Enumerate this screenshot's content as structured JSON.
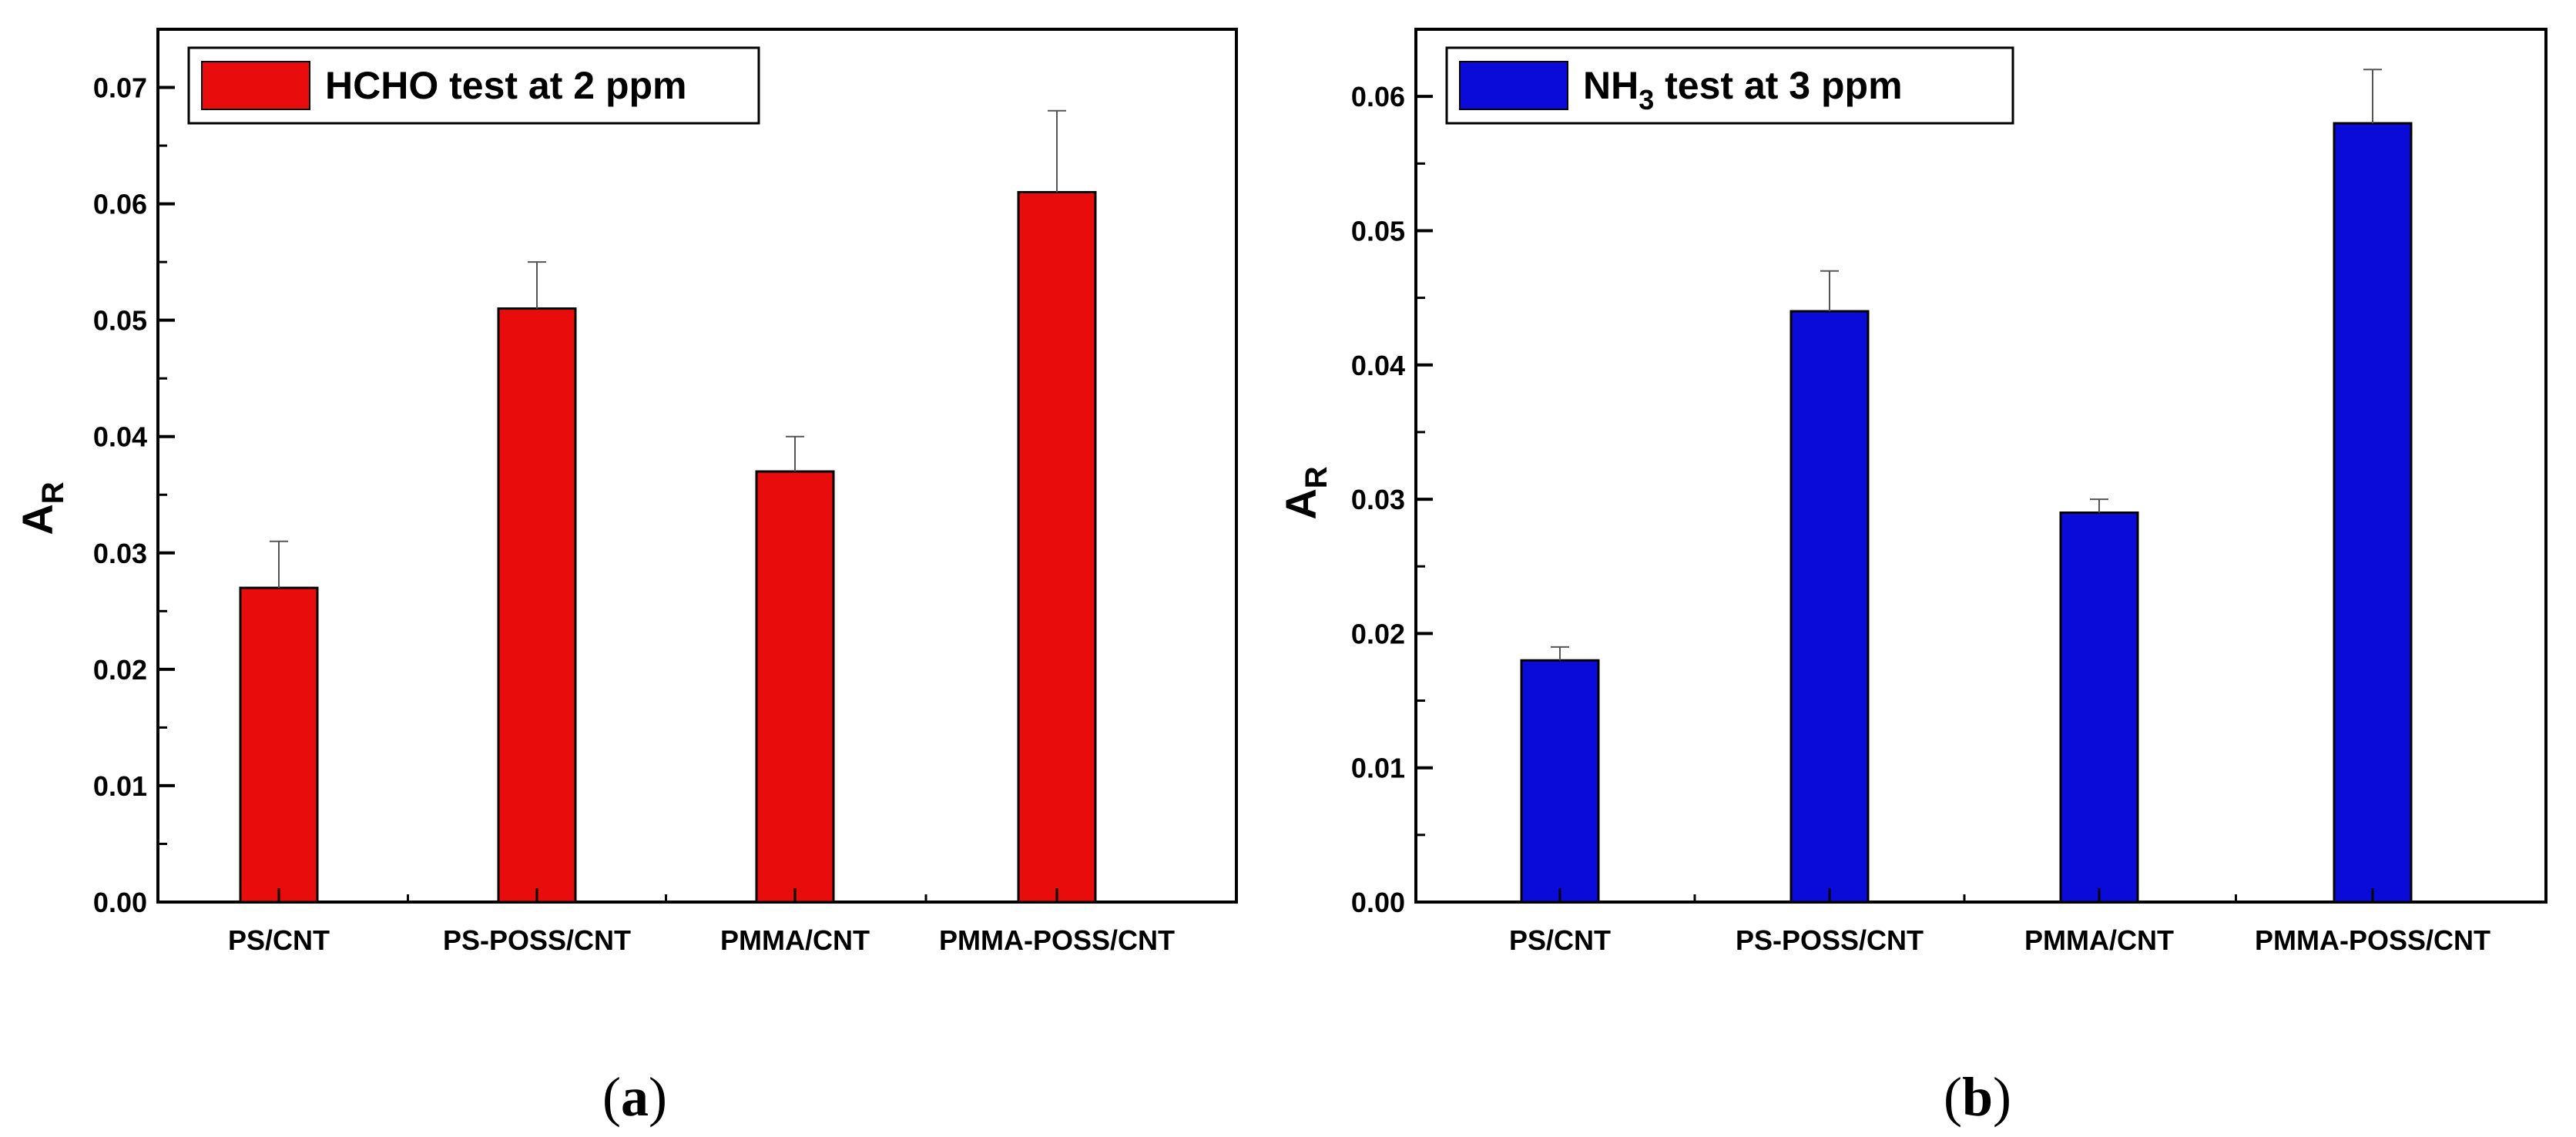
{
  "chart_data": [
    {
      "type": "bar",
      "panel_label": "a",
      "title": "",
      "legend": {
        "text": "HCHO test at 2 ppm",
        "subscript": "",
        "suffix": "",
        "position": "top-left"
      },
      "xlabel": "",
      "ylabel": "A",
      "ylabel_sub": "R",
      "ylim": [
        0,
        0.075
      ],
      "yticks": [
        0.0,
        0.01,
        0.02,
        0.03,
        0.04,
        0.05,
        0.06,
        0.07
      ],
      "ytick_labels": [
        "0.00",
        "0.01",
        "0.02",
        "0.03",
        "0.04",
        "0.05",
        "0.06",
        "0.07"
      ],
      "categories": [
        "PS/CNT",
        "PS-POSS/CNT",
        "PMMA/CNT",
        "PMMA-POSS/CNT"
      ],
      "series": [
        {
          "name": "HCHO test at 2 ppm",
          "values": [
            0.027,
            0.051,
            0.037,
            0.061
          ],
          "error_upper": [
            0.004,
            0.004,
            0.003,
            0.007
          ],
          "color": "#e80c0c"
        }
      ],
      "grid": false
    },
    {
      "type": "bar",
      "panel_label": "b",
      "title": "",
      "legend": {
        "text": "NH",
        "subscript": "3",
        "suffix": " test at 3 ppm",
        "position": "top-left"
      },
      "xlabel": "",
      "ylabel": "A",
      "ylabel_sub": "R",
      "ylim": [
        0,
        0.065
      ],
      "yticks": [
        0.0,
        0.01,
        0.02,
        0.03,
        0.04,
        0.05,
        0.06
      ],
      "ytick_labels": [
        "0.00",
        "0.01",
        "0.02",
        "0.03",
        "0.04",
        "0.05",
        "0.06"
      ],
      "categories": [
        "PS/CNT",
        "PS-POSS/CNT",
        "PMMA/CNT",
        "PMMA-POSS/CNT"
      ],
      "series": [
        {
          "name": "NH3 test at 3 ppm",
          "values": [
            0.018,
            0.044,
            0.029,
            0.058
          ],
          "error_upper": [
            0.001,
            0.003,
            0.001,
            0.004
          ],
          "color": "#0b0bd9"
        }
      ],
      "grid": false
    }
  ]
}
